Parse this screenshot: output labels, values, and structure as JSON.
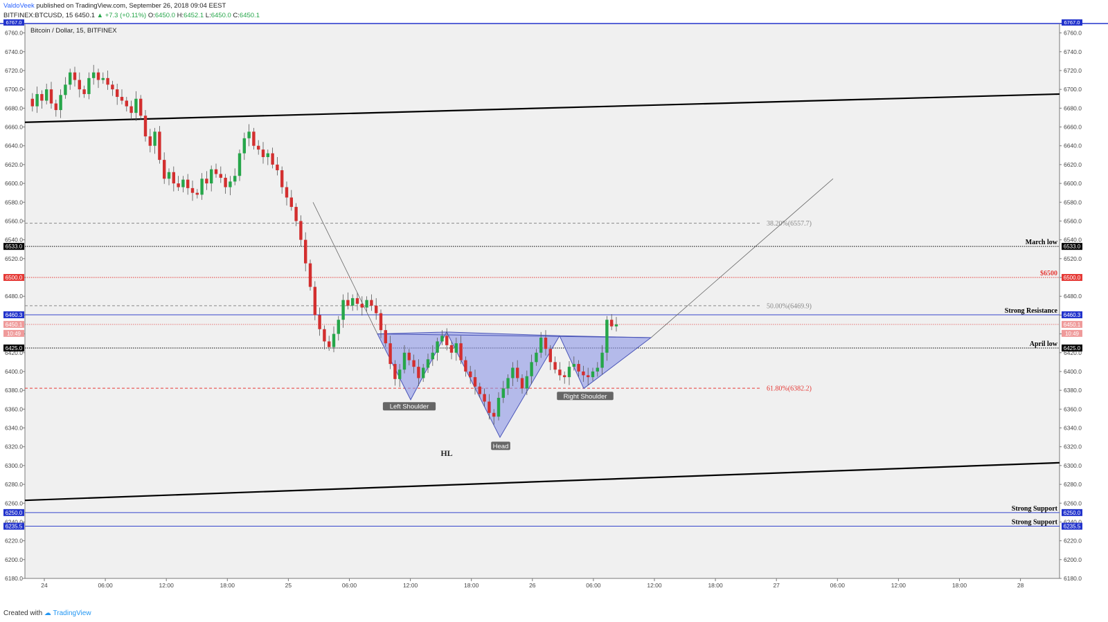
{
  "header": {
    "author": "ValdoVeek",
    "published": "published on TradingView.com, September 26, 2018 09:04 EEST",
    "symbol": "BITFINEX:BTCUSD, 15",
    "last": "6450.1",
    "change": "▲ +7.3 (+0.11%)",
    "o_label": "O:",
    "o": "6450.0",
    "h_label": "H:",
    "h": "6452.1",
    "l_label": "L:",
    "l": "6450.0",
    "c_label": "C:",
    "c": "6450.1"
  },
  "legend": "Bitcoin / Dollar, 15, BITFINEX",
  "footer": {
    "created_with": "Created with",
    "brand": "TradingView"
  },
  "chart_data": {
    "type": "candlestick",
    "title": "Bitcoin / Dollar, 15, BITFINEX",
    "ylim": [
      6180,
      6770
    ],
    "y_ticks": [
      6180,
      6200,
      6220,
      6240,
      6260,
      6280,
      6300,
      6320,
      6340,
      6360,
      6380,
      6400,
      6420,
      6440,
      6460,
      6480,
      6500,
      6520,
      6540,
      6560,
      6580,
      6600,
      6620,
      6640,
      6660,
      6680,
      6700,
      6720,
      6740,
      6760
    ],
    "x_ticks": [
      "24",
      "06:00",
      "12:00",
      "18:00",
      "25",
      "06:00",
      "12:00",
      "18:00",
      "26",
      "06:00",
      "12:00",
      "18:00",
      "27",
      "06:00",
      "12:00",
      "18:00",
      "28"
    ],
    "price_path": [
      6690,
      6682,
      6695,
      6688,
      6700,
      6685,
      6678,
      6694,
      6705,
      6718,
      6710,
      6700,
      6695,
      6712,
      6718,
      6710,
      6712,
      6705,
      6700,
      6692,
      6688,
      6682,
      6675,
      6690,
      6672,
      6650,
      6640,
      6655,
      6625,
      6605,
      6612,
      6600,
      6596,
      6604,
      6595,
      6590,
      6588,
      6605,
      6600,
      6615,
      6610,
      6606,
      6596,
      6602,
      6608,
      6632,
      6648,
      6655,
      6640,
      6636,
      6628,
      6632,
      6620,
      6614,
      6596,
      6585,
      6575,
      6560,
      6540,
      6515,
      6490,
      6460,
      6445,
      6432,
      6426,
      6440,
      6455,
      6476,
      6470,
      6478,
      6472,
      6468,
      6476,
      6470,
      6462,
      6444,
      6430,
      6408,
      6392,
      6402,
      6420,
      6412,
      6405,
      6393,
      6404,
      6413,
      6420,
      6432,
      6438,
      6428,
      6420,
      6430,
      6412,
      6400,
      6394,
      6384,
      6376,
      6368,
      6356,
      6352,
      6372,
      6382,
      6393,
      6404,
      6393,
      6382,
      6395,
      6410,
      6420,
      6436,
      6424,
      6410,
      6402,
      6396,
      6394,
      6405,
      6408,
      6400,
      6396,
      6394,
      6400,
      6404,
      6420,
      6455,
      6448,
      6450
    ],
    "levels": [
      {
        "price": 6557.7,
        "label": "38.20%(6557.7)",
        "color": "#888888",
        "style": "dashed"
      },
      {
        "price": 6533.0,
        "label": "March low",
        "tag": "6533.0",
        "color": "#000000",
        "style": "dotted"
      },
      {
        "price": 6500.0,
        "label": "$6500",
        "tag": "6500.0",
        "color": "#e53935",
        "style": "dotted"
      },
      {
        "price": 6469.9,
        "label": "50.00%(6469.9)",
        "color": "#888888",
        "style": "dashed"
      },
      {
        "price": 6460.3,
        "label": "Strong Resistance",
        "tag": "6460.3",
        "color": "#3344cc",
        "style": "solid"
      },
      {
        "price": 6450.1,
        "tag": "6450.1",
        "sub_tag": "10:49",
        "color": "#e57373",
        "style": "dotted"
      },
      {
        "price": 6425.0,
        "label": "April low",
        "tag": "6425.0",
        "color": "#000000",
        "style": "dotted"
      },
      {
        "price": 6382.2,
        "label": "61.80%(6382.2)",
        "color": "#e53935",
        "style": "dashed"
      },
      {
        "price": 6250.0,
        "label": "Strong Support",
        "tag": "6250.0",
        "color": "#3344cc",
        "style": "solid"
      },
      {
        "price": 6235.5,
        "label": "Strong Support",
        "tag": "6235.5",
        "color": "#3344cc",
        "style": "solid"
      }
    ],
    "top_tag": "6767.0",
    "pattern_labels": [
      "Left Shoulder",
      "Head",
      "Right Shoulder"
    ],
    "hl_label": "HL",
    "upper_channel": [
      6665,
      6695
    ],
    "lower_channel": [
      6263,
      6303
    ],
    "colors": {
      "up": "#26a64a",
      "down": "#d32f2f",
      "pattern_fill": "#8c96e6",
      "channel": "#000000"
    }
  }
}
